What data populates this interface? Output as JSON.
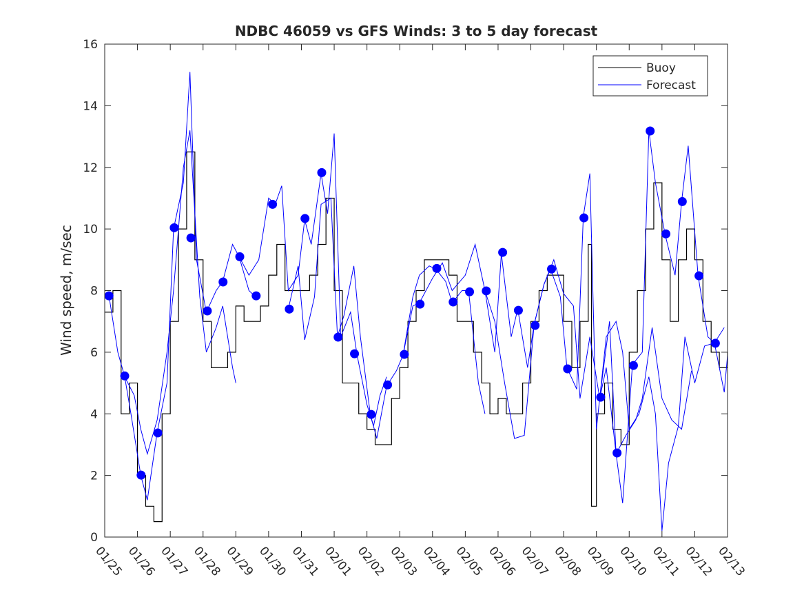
{
  "chart_data": {
    "type": "line",
    "title": "NDBC 46059 vs GFS Winds: 3 to 5 day forecast",
    "xlabel": "",
    "ylabel": "Wind speed, m/sec",
    "ylim": [
      0,
      16
    ],
    "xlim_days": [
      0,
      19
    ],
    "yticks": [
      "0",
      "2",
      "4",
      "6",
      "8",
      "10",
      "12",
      "14",
      "16"
    ],
    "xticks": [
      "01/25",
      "01/26",
      "01/27",
      "01/28",
      "01/29",
      "01/30",
      "01/31",
      "02/01",
      "02/02",
      "02/03",
      "02/04",
      "02/05",
      "02/06",
      "02/07",
      "02/08",
      "02/09",
      "02/10",
      "02/11",
      "02/12",
      "02/13"
    ],
    "legend": {
      "placement": "top-right",
      "entries": [
        "Buoy",
        "Forecast"
      ]
    },
    "colors": {
      "buoy": "#000000",
      "forecast": "#0000ff"
    },
    "buoy": [
      [
        0,
        7.3
      ],
      [
        0.25,
        8
      ],
      [
        0.5,
        4
      ],
      [
        0.75,
        5
      ],
      [
        1,
        2
      ],
      [
        1.25,
        1
      ],
      [
        1.5,
        0.5
      ],
      [
        1.75,
        4
      ],
      [
        2,
        7
      ],
      [
        2.25,
        10
      ],
      [
        2.5,
        12.5
      ],
      [
        2.75,
        9
      ],
      [
        3,
        7
      ],
      [
        3.25,
        5.5
      ],
      [
        3.5,
        5.5
      ],
      [
        3.75,
        6
      ],
      [
        4,
        7.5
      ],
      [
        4.25,
        7
      ],
      [
        4.5,
        7
      ],
      [
        4.75,
        7.5
      ],
      [
        5,
        8.5
      ],
      [
        5.25,
        9.5
      ],
      [
        5.5,
        8
      ],
      [
        5.75,
        8
      ],
      [
        6,
        8
      ],
      [
        6.25,
        8.5
      ],
      [
        6.5,
        9.5
      ],
      [
        6.75,
        11
      ],
      [
        7,
        8
      ],
      [
        7.25,
        5
      ],
      [
        7.5,
        5
      ],
      [
        7.75,
        4
      ],
      [
        8,
        3.5
      ],
      [
        8.25,
        3
      ],
      [
        8.5,
        3
      ],
      [
        8.75,
        4.5
      ],
      [
        9,
        5.5
      ],
      [
        9.25,
        7
      ],
      [
        9.5,
        8
      ],
      [
        9.75,
        9
      ],
      [
        10,
        9
      ],
      [
        10.25,
        9
      ],
      [
        10.5,
        8.5
      ],
      [
        10.75,
        7
      ],
      [
        11,
        7
      ],
      [
        11.25,
        6
      ],
      [
        11.5,
        5
      ],
      [
        11.75,
        4
      ],
      [
        12,
        4.5
      ],
      [
        12.25,
        4
      ],
      [
        12.5,
        4
      ],
      [
        12.75,
        5
      ],
      [
        13,
        7
      ],
      [
        13.25,
        8
      ],
      [
        13.5,
        8.5
      ],
      [
        13.75,
        8.5
      ],
      [
        14,
        7
      ],
      [
        14.25,
        5.5
      ],
      [
        14.5,
        7
      ],
      [
        14.75,
        9.5
      ],
      [
        14.85,
        1
      ],
      [
        15,
        4
      ],
      [
        15.25,
        5
      ],
      [
        15.5,
        3.5
      ],
      [
        15.75,
        3
      ],
      [
        16,
        6
      ],
      [
        16.25,
        8
      ],
      [
        16.5,
        10
      ],
      [
        16.75,
        11.5
      ],
      [
        17,
        9
      ],
      [
        17.25,
        7
      ],
      [
        17.5,
        9
      ],
      [
        17.75,
        10
      ],
      [
        18,
        9
      ],
      [
        18.25,
        7
      ],
      [
        18.5,
        6
      ],
      [
        18.75,
        5.5
      ],
      [
        19,
        6
      ]
    ],
    "forecast_runs": [
      [
        [
          0.13,
          7.83
        ],
        [
          0.4,
          6
        ],
        [
          0.61,
          5.2
        ],
        [
          0.8,
          4
        ],
        [
          1.1,
          2
        ],
        [
          1.3,
          1.2
        ],
        [
          1.6,
          3.4
        ],
        [
          1.9,
          5
        ],
        [
          2.1,
          10
        ],
        [
          2.4,
          11.5
        ],
        [
          2.6,
          15.1
        ],
        [
          2.8,
          9
        ],
        [
          3.1,
          7.3
        ],
        [
          3.4,
          8
        ],
        [
          3.6,
          8.3
        ],
        [
          3.9,
          9.5
        ],
        [
          4.1,
          9.1
        ],
        [
          4.4,
          8
        ],
        [
          4.6,
          7.8
        ]
      ],
      [
        [
          0.61,
          5.2
        ],
        [
          0.9,
          4.6
        ],
        [
          1.1,
          3.5
        ],
        [
          1.3,
          2.7
        ],
        [
          1.6,
          3.8
        ],
        [
          1.9,
          6
        ],
        [
          2.1,
          8
        ],
        [
          2.4,
          12
        ],
        [
          2.6,
          13.2
        ],
        [
          2.9,
          7.8
        ],
        [
          3.1,
          6
        ],
        [
          3.4,
          6.8
        ],
        [
          3.6,
          7.5
        ],
        [
          3.9,
          5.5
        ],
        [
          4.0,
          5
        ]
      ],
      [
        [
          4.1,
          9.1
        ],
        [
          4.4,
          8.5
        ],
        [
          4.7,
          9
        ],
        [
          5.0,
          11
        ],
        [
          5.2,
          10.8
        ],
        [
          5.4,
          11.4
        ],
        [
          5.6,
          8
        ],
        [
          5.9,
          8.5
        ],
        [
          6.1,
          10.3
        ],
        [
          6.3,
          9.5
        ],
        [
          6.6,
          11.8
        ],
        [
          6.8,
          10.5
        ],
        [
          7.0,
          13.1
        ],
        [
          7.2,
          6.5
        ],
        [
          7.5,
          7.3
        ],
        [
          7.7,
          5.9
        ],
        [
          8.0,
          4.3
        ],
        [
          8.2,
          3.6
        ],
        [
          8.4,
          4.6
        ],
        [
          8.6,
          5.2
        ]
      ],
      [
        [
          5.6,
          7.4
        ],
        [
          5.9,
          8.8
        ],
        [
          6.1,
          6.4
        ],
        [
          6.4,
          7.8
        ],
        [
          6.6,
          10.8
        ],
        [
          6.9,
          11
        ],
        [
          7.1,
          6.5
        ],
        [
          7.3,
          7.2
        ],
        [
          7.6,
          8.8
        ],
        [
          7.8,
          6.5
        ],
        [
          8.1,
          4
        ],
        [
          8.3,
          3.2
        ],
        [
          8.6,
          4.9
        ],
        [
          8.9,
          5.4
        ],
        [
          9.1,
          5.9
        ],
        [
          9.4,
          7.8
        ],
        [
          9.6,
          8.5
        ],
        [
          9.9,
          8.8
        ],
        [
          10.1,
          8.7
        ],
        [
          10.4,
          8.3
        ],
        [
          10.6,
          7.6
        ],
        [
          10.9,
          8
        ],
        [
          11.1,
          8
        ],
        [
          11.4,
          5
        ],
        [
          11.6,
          4
        ]
      ],
      [
        [
          9.1,
          5.9
        ],
        [
          9.4,
          7.5
        ],
        [
          9.6,
          7.6
        ],
        [
          10.0,
          8.4
        ],
        [
          10.3,
          8.9
        ],
        [
          10.6,
          8
        ],
        [
          11.0,
          8.5
        ],
        [
          11.3,
          9.5
        ],
        [
          11.6,
          8
        ],
        [
          11.9,
          6
        ],
        [
          12.1,
          9.2
        ],
        [
          12.4,
          6.5
        ],
        [
          12.6,
          7.4
        ],
        [
          12.9,
          5.5
        ],
        [
          13.1,
          6.9
        ],
        [
          13.4,
          8.2
        ],
        [
          13.6,
          8.7
        ],
        [
          13.9,
          7.8
        ],
        [
          14.1,
          5.5
        ],
        [
          14.4,
          4.8
        ],
        [
          14.6,
          10.4
        ],
        [
          14.8,
          11.8
        ],
        [
          15.0,
          3.5
        ],
        [
          15.1,
          4.5
        ],
        [
          15.3,
          5.5
        ],
        [
          15.6,
          2.7
        ],
        [
          15.8,
          1.1
        ],
        [
          16.1,
          5.6
        ],
        [
          16.4,
          6
        ],
        [
          16.6,
          13.2
        ],
        [
          16.8,
          11.5
        ],
        [
          17.1,
          9.8
        ],
        [
          17.4,
          8.5
        ],
        [
          17.6,
          10.9
        ],
        [
          17.8,
          12.7
        ],
        [
          18.1,
          8.5
        ],
        [
          18.4,
          6.5
        ],
        [
          18.6,
          6.3
        ],
        [
          18.9,
          4.7
        ],
        [
          19,
          5.9
        ]
      ],
      [
        [
          11.6,
          8
        ],
        [
          11.9,
          7
        ],
        [
          12.2,
          5
        ],
        [
          12.5,
          3.2
        ],
        [
          12.8,
          3.3
        ],
        [
          13.1,
          6.9
        ],
        [
          13.4,
          8.2
        ],
        [
          13.7,
          9
        ],
        [
          14.0,
          7.9
        ],
        [
          14.3,
          7.5
        ],
        [
          14.5,
          4.5
        ],
        [
          14.8,
          6.5
        ],
        [
          15.1,
          4.5
        ],
        [
          15.3,
          6.5
        ],
        [
          15.6,
          7
        ],
        [
          15.8,
          6
        ],
        [
          16.0,
          3.5
        ],
        [
          16.3,
          4
        ],
        [
          16.6,
          5.2
        ],
        [
          16.8,
          4
        ],
        [
          17.0,
          0.2
        ],
        [
          17.2,
          2.4
        ],
        [
          17.5,
          3.6
        ],
        [
          17.7,
          6.5
        ],
        [
          18.0,
          5
        ],
        [
          18.3,
          6.2
        ],
        [
          18.6,
          6.3
        ],
        [
          18.9,
          6.8
        ]
      ],
      [
        [
          15.1,
          4.5
        ],
        [
          15.4,
          7
        ],
        [
          15.6,
          2.7
        ],
        [
          15.9,
          3.3
        ],
        [
          16.2,
          3.8
        ],
        [
          16.4,
          4.5
        ],
        [
          16.7,
          6.8
        ],
        [
          17.0,
          4.5
        ],
        [
          17.3,
          3.8
        ],
        [
          17.6,
          3.5
        ],
        [
          17.9,
          5.4
        ]
      ]
    ],
    "forecast_markers": [
      [
        0.13,
        7.83
      ],
      [
        0.61,
        5.23
      ],
      [
        1.11,
        2.01
      ],
      [
        1.62,
        3.38
      ],
      [
        2.12,
        10.04
      ],
      [
        2.63,
        9.71
      ],
      [
        3.13,
        7.34
      ],
      [
        3.61,
        8.28
      ],
      [
        4.12,
        9.1
      ],
      [
        4.62,
        7.83
      ],
      [
        5.12,
        10.8
      ],
      [
        5.63,
        7.4
      ],
      [
        6.11,
        10.34
      ],
      [
        6.62,
        11.83
      ],
      [
        7.12,
        6.49
      ],
      [
        7.62,
        5.95
      ],
      [
        8.13,
        3.98
      ],
      [
        8.63,
        4.94
      ],
      [
        9.14,
        5.93
      ],
      [
        9.62,
        7.56
      ],
      [
        10.13,
        8.72
      ],
      [
        10.63,
        7.63
      ],
      [
        11.13,
        7.96
      ],
      [
        11.64,
        7.99
      ],
      [
        12.14,
        9.24
      ],
      [
        12.62,
        7.36
      ],
      [
        13.13,
        6.87
      ],
      [
        13.63,
        8.7
      ],
      [
        14.12,
        5.46
      ],
      [
        14.62,
        10.36
      ],
      [
        15.13,
        4.54
      ],
      [
        15.63,
        2.73
      ],
      [
        16.13,
        5.57
      ],
      [
        16.64,
        13.18
      ],
      [
        17.12,
        9.84
      ],
      [
        17.62,
        10.89
      ],
      [
        18.13,
        8.48
      ],
      [
        18.63,
        6.29
      ]
    ]
  }
}
